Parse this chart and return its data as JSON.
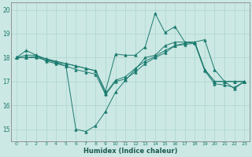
{
  "xlabel": "Humidex (Indice chaleur)",
  "bg_color": "#cce8e4",
  "grid_color": "#b0d8d2",
  "line_color": "#1a7a6e",
  "xlim": [
    -0.5,
    23.5
  ],
  "ylim": [
    14.5,
    20.3
  ],
  "yticks": [
    15,
    16,
    17,
    18,
    19,
    20
  ],
  "xticks": [
    0,
    1,
    2,
    3,
    4,
    5,
    6,
    7,
    8,
    9,
    10,
    11,
    12,
    13,
    14,
    15,
    16,
    17,
    18,
    19,
    20,
    21,
    22,
    23
  ],
  "lines": [
    {
      "x": [
        0,
        1,
        2,
        3,
        4,
        5,
        6,
        7,
        8,
        9,
        10,
        11,
        12,
        13,
        14,
        15,
        16,
        17,
        18,
        19,
        20,
        21,
        22,
        23
      ],
      "y": [
        18.0,
        18.3,
        18.1,
        17.95,
        17.8,
        17.75,
        17.65,
        17.55,
        17.45,
        16.6,
        18.15,
        18.1,
        18.1,
        18.45,
        19.85,
        19.05,
        19.3,
        18.65,
        18.65,
        18.75,
        17.5,
        17.0,
        17.0,
        17.0
      ]
    },
    {
      "x": [
        0,
        1,
        2,
        3,
        4,
        5,
        6,
        7,
        8,
        9,
        10,
        11,
        12,
        13,
        14,
        15,
        16,
        17,
        18,
        19,
        20,
        21,
        22,
        23
      ],
      "y": [
        18.0,
        18.1,
        18.1,
        17.85,
        17.75,
        17.65,
        15.0,
        14.9,
        15.15,
        15.75,
        16.55,
        17.05,
        17.5,
        18.0,
        18.1,
        18.5,
        18.65,
        18.65,
        18.65,
        17.5,
        17.0,
        17.0,
        16.7,
        17.0
      ]
    },
    {
      "x": [
        0,
        1,
        2,
        3,
        4,
        5,
        6,
        7,
        8,
        9,
        10,
        11,
        12,
        13,
        14,
        15,
        16,
        17,
        18,
        19,
        20,
        21,
        22,
        23
      ],
      "y": [
        18.0,
        18.0,
        18.05,
        17.95,
        17.85,
        17.75,
        17.65,
        17.55,
        17.45,
        16.5,
        17.05,
        17.2,
        17.55,
        17.85,
        18.05,
        18.3,
        18.5,
        18.6,
        18.65,
        17.5,
        17.0,
        17.0,
        17.0,
        17.0
      ]
    },
    {
      "x": [
        0,
        1,
        2,
        3,
        4,
        5,
        6,
        7,
        8,
        9,
        10,
        11,
        12,
        13,
        14,
        15,
        16,
        17,
        18,
        19,
        20,
        21,
        22,
        23
      ],
      "y": [
        18.0,
        18.0,
        18.0,
        17.9,
        17.8,
        17.65,
        17.5,
        17.4,
        17.3,
        16.45,
        17.0,
        17.1,
        17.4,
        17.75,
        18.0,
        18.2,
        18.5,
        18.55,
        18.6,
        17.45,
        16.9,
        16.85,
        16.75,
        17.0
      ]
    }
  ]
}
